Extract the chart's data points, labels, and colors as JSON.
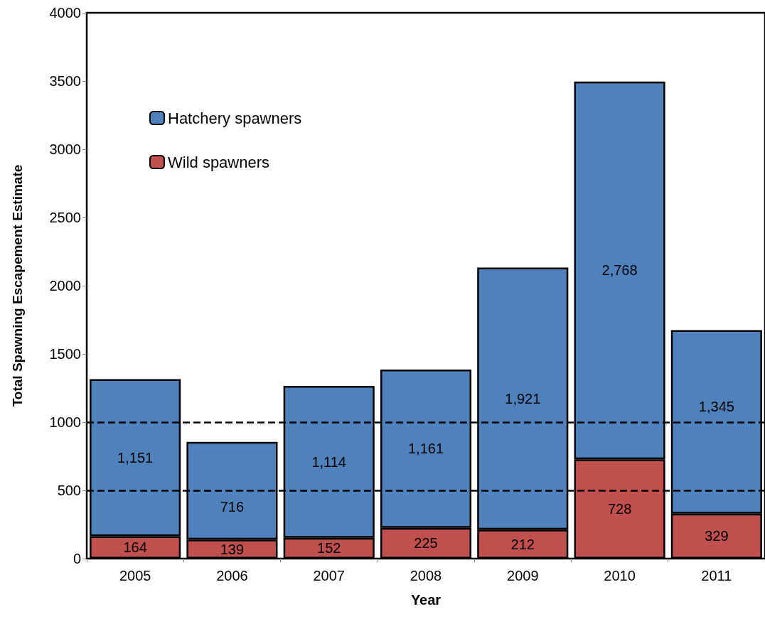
{
  "chart_data": {
    "type": "bar",
    "stacked": true,
    "xlabel": "Year",
    "ylabel": "Total Spawning Escapement Estimate",
    "categories": [
      "2005",
      "2006",
      "2007",
      "2008",
      "2009",
      "2010",
      "2011"
    ],
    "series": [
      {
        "name": "Wild spawners",
        "color": "#c0504d",
        "values": [
          164,
          139,
          152,
          225,
          212,
          728,
          329
        ],
        "value_labels": [
          "164",
          "139",
          "152",
          "225",
          "212",
          "728",
          "329"
        ]
      },
      {
        "name": "Hatchery spawners",
        "color": "#4f81bd",
        "values": [
          1151,
          716,
          1114,
          1161,
          1921,
          2768,
          1345
        ],
        "value_labels": [
          "1,151",
          "716",
          "1,114",
          "1,161",
          "1,921",
          "2,768",
          "1,345"
        ]
      }
    ],
    "ylim": [
      0,
      4000
    ],
    "yticks": [
      0,
      500,
      1000,
      1500,
      2000,
      2500,
      3000,
      3500,
      4000
    ],
    "ref_lines": [
      {
        "axis": "y",
        "value": 1000,
        "color": "#000000",
        "line_style": "dashed"
      },
      {
        "axis": "y",
        "value": 500,
        "color": "#000000",
        "line_style": "dashed"
      }
    ],
    "legend": "top left",
    "grid": false
  }
}
